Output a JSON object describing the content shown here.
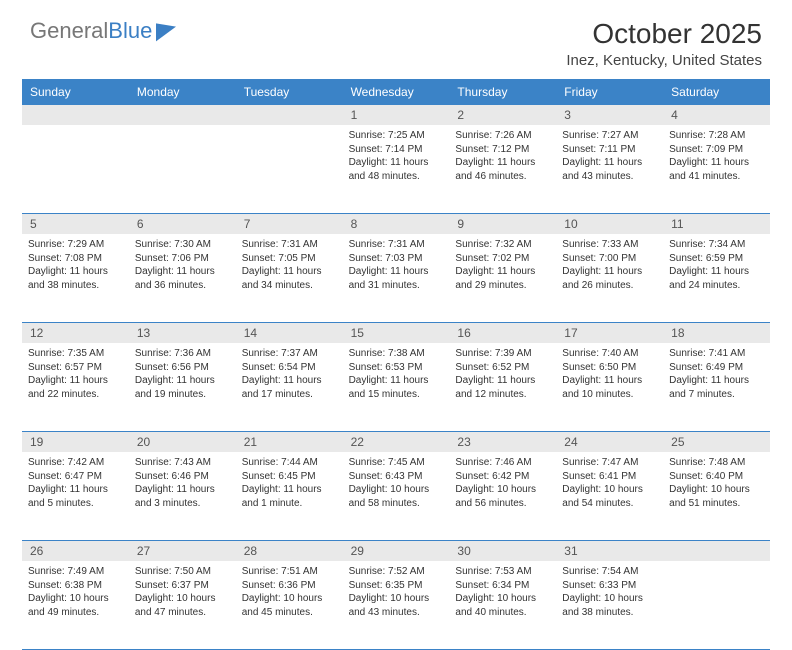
{
  "logo": {
    "part1": "General",
    "part2": "Blue"
  },
  "title": "October 2025",
  "location": "Inez, Kentucky, United States",
  "day_names": [
    "Sunday",
    "Monday",
    "Tuesday",
    "Wednesday",
    "Thursday",
    "Friday",
    "Saturday"
  ],
  "colors": {
    "header_bg": "#3b83c7",
    "header_text": "#ffffff",
    "daynum_bg": "#e9e9e9",
    "rule": "#3b83c7"
  },
  "weeks": [
    [
      {
        "num": "",
        "sunrise": "",
        "sunset": "",
        "daylight": ""
      },
      {
        "num": "",
        "sunrise": "",
        "sunset": "",
        "daylight": ""
      },
      {
        "num": "",
        "sunrise": "",
        "sunset": "",
        "daylight": ""
      },
      {
        "num": "1",
        "sunrise": "Sunrise: 7:25 AM",
        "sunset": "Sunset: 7:14 PM",
        "daylight": "Daylight: 11 hours and 48 minutes."
      },
      {
        "num": "2",
        "sunrise": "Sunrise: 7:26 AM",
        "sunset": "Sunset: 7:12 PM",
        "daylight": "Daylight: 11 hours and 46 minutes."
      },
      {
        "num": "3",
        "sunrise": "Sunrise: 7:27 AM",
        "sunset": "Sunset: 7:11 PM",
        "daylight": "Daylight: 11 hours and 43 minutes."
      },
      {
        "num": "4",
        "sunrise": "Sunrise: 7:28 AM",
        "sunset": "Sunset: 7:09 PM",
        "daylight": "Daylight: 11 hours and 41 minutes."
      }
    ],
    [
      {
        "num": "5",
        "sunrise": "Sunrise: 7:29 AM",
        "sunset": "Sunset: 7:08 PM",
        "daylight": "Daylight: 11 hours and 38 minutes."
      },
      {
        "num": "6",
        "sunrise": "Sunrise: 7:30 AM",
        "sunset": "Sunset: 7:06 PM",
        "daylight": "Daylight: 11 hours and 36 minutes."
      },
      {
        "num": "7",
        "sunrise": "Sunrise: 7:31 AM",
        "sunset": "Sunset: 7:05 PM",
        "daylight": "Daylight: 11 hours and 34 minutes."
      },
      {
        "num": "8",
        "sunrise": "Sunrise: 7:31 AM",
        "sunset": "Sunset: 7:03 PM",
        "daylight": "Daylight: 11 hours and 31 minutes."
      },
      {
        "num": "9",
        "sunrise": "Sunrise: 7:32 AM",
        "sunset": "Sunset: 7:02 PM",
        "daylight": "Daylight: 11 hours and 29 minutes."
      },
      {
        "num": "10",
        "sunrise": "Sunrise: 7:33 AM",
        "sunset": "Sunset: 7:00 PM",
        "daylight": "Daylight: 11 hours and 26 minutes."
      },
      {
        "num": "11",
        "sunrise": "Sunrise: 7:34 AM",
        "sunset": "Sunset: 6:59 PM",
        "daylight": "Daylight: 11 hours and 24 minutes."
      }
    ],
    [
      {
        "num": "12",
        "sunrise": "Sunrise: 7:35 AM",
        "sunset": "Sunset: 6:57 PM",
        "daylight": "Daylight: 11 hours and 22 minutes."
      },
      {
        "num": "13",
        "sunrise": "Sunrise: 7:36 AM",
        "sunset": "Sunset: 6:56 PM",
        "daylight": "Daylight: 11 hours and 19 minutes."
      },
      {
        "num": "14",
        "sunrise": "Sunrise: 7:37 AM",
        "sunset": "Sunset: 6:54 PM",
        "daylight": "Daylight: 11 hours and 17 minutes."
      },
      {
        "num": "15",
        "sunrise": "Sunrise: 7:38 AM",
        "sunset": "Sunset: 6:53 PM",
        "daylight": "Daylight: 11 hours and 15 minutes."
      },
      {
        "num": "16",
        "sunrise": "Sunrise: 7:39 AM",
        "sunset": "Sunset: 6:52 PM",
        "daylight": "Daylight: 11 hours and 12 minutes."
      },
      {
        "num": "17",
        "sunrise": "Sunrise: 7:40 AM",
        "sunset": "Sunset: 6:50 PM",
        "daylight": "Daylight: 11 hours and 10 minutes."
      },
      {
        "num": "18",
        "sunrise": "Sunrise: 7:41 AM",
        "sunset": "Sunset: 6:49 PM",
        "daylight": "Daylight: 11 hours and 7 minutes."
      }
    ],
    [
      {
        "num": "19",
        "sunrise": "Sunrise: 7:42 AM",
        "sunset": "Sunset: 6:47 PM",
        "daylight": "Daylight: 11 hours and 5 minutes."
      },
      {
        "num": "20",
        "sunrise": "Sunrise: 7:43 AM",
        "sunset": "Sunset: 6:46 PM",
        "daylight": "Daylight: 11 hours and 3 minutes."
      },
      {
        "num": "21",
        "sunrise": "Sunrise: 7:44 AM",
        "sunset": "Sunset: 6:45 PM",
        "daylight": "Daylight: 11 hours and 1 minute."
      },
      {
        "num": "22",
        "sunrise": "Sunrise: 7:45 AM",
        "sunset": "Sunset: 6:43 PM",
        "daylight": "Daylight: 10 hours and 58 minutes."
      },
      {
        "num": "23",
        "sunrise": "Sunrise: 7:46 AM",
        "sunset": "Sunset: 6:42 PM",
        "daylight": "Daylight: 10 hours and 56 minutes."
      },
      {
        "num": "24",
        "sunrise": "Sunrise: 7:47 AM",
        "sunset": "Sunset: 6:41 PM",
        "daylight": "Daylight: 10 hours and 54 minutes."
      },
      {
        "num": "25",
        "sunrise": "Sunrise: 7:48 AM",
        "sunset": "Sunset: 6:40 PM",
        "daylight": "Daylight: 10 hours and 51 minutes."
      }
    ],
    [
      {
        "num": "26",
        "sunrise": "Sunrise: 7:49 AM",
        "sunset": "Sunset: 6:38 PM",
        "daylight": "Daylight: 10 hours and 49 minutes."
      },
      {
        "num": "27",
        "sunrise": "Sunrise: 7:50 AM",
        "sunset": "Sunset: 6:37 PM",
        "daylight": "Daylight: 10 hours and 47 minutes."
      },
      {
        "num": "28",
        "sunrise": "Sunrise: 7:51 AM",
        "sunset": "Sunset: 6:36 PM",
        "daylight": "Daylight: 10 hours and 45 minutes."
      },
      {
        "num": "29",
        "sunrise": "Sunrise: 7:52 AM",
        "sunset": "Sunset: 6:35 PM",
        "daylight": "Daylight: 10 hours and 43 minutes."
      },
      {
        "num": "30",
        "sunrise": "Sunrise: 7:53 AM",
        "sunset": "Sunset: 6:34 PM",
        "daylight": "Daylight: 10 hours and 40 minutes."
      },
      {
        "num": "31",
        "sunrise": "Sunrise: 7:54 AM",
        "sunset": "Sunset: 6:33 PM",
        "daylight": "Daylight: 10 hours and 38 minutes."
      },
      {
        "num": "",
        "sunrise": "",
        "sunset": "",
        "daylight": ""
      }
    ]
  ]
}
